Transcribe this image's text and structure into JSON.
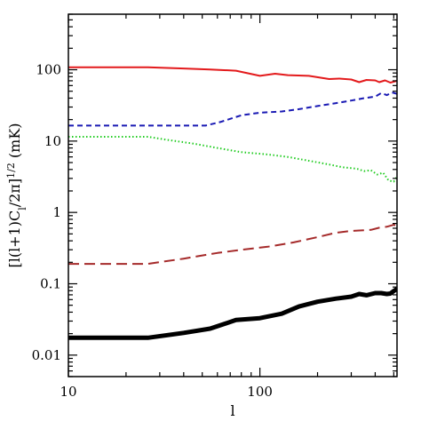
{
  "chart_data": {
    "type": "line",
    "title": "",
    "xlabel": "l",
    "ylabel": "[l(l+1)C_l/2π]^{1/2} (mK)",
    "x_scale": "log",
    "y_scale": "log",
    "xlim": [
      10,
      520
    ],
    "ylim": [
      0.005,
      600
    ],
    "grid": false,
    "legend": "none",
    "x_ticks": [
      {
        "value": 10,
        "label": "10"
      },
      {
        "value": 100,
        "label": "100"
      }
    ],
    "y_ticks": [
      {
        "value": 0.01,
        "label": "0.01"
      },
      {
        "value": 0.1,
        "label": "0.1"
      },
      {
        "value": 1,
        "label": "1"
      },
      {
        "value": 10,
        "label": "10"
      },
      {
        "value": 100,
        "label": "100"
      }
    ],
    "series": [
      {
        "color": "#e31a1c",
        "style": "solid",
        "width": 2,
        "points": [
          [
            10,
            108
          ],
          [
            20,
            108
          ],
          [
            26,
            108
          ],
          [
            40,
            104
          ],
          [
            55,
            101
          ],
          [
            75,
            97
          ],
          [
            100,
            82
          ],
          [
            120,
            88
          ],
          [
            140,
            84
          ],
          [
            180,
            82
          ],
          [
            230,
            74
          ],
          [
            260,
            75
          ],
          [
            300,
            73
          ],
          [
            330,
            67
          ],
          [
            360,
            72
          ],
          [
            400,
            71
          ],
          [
            420,
            67
          ],
          [
            450,
            71
          ],
          [
            480,
            66
          ],
          [
            500,
            68
          ],
          [
            520,
            70
          ]
        ]
      },
      {
        "color": "#1a1ab4",
        "style": "dashed",
        "width": 2,
        "points": [
          [
            10,
            16.5
          ],
          [
            25,
            16.5
          ],
          [
            52,
            16.5
          ],
          [
            62,
            18.5
          ],
          [
            80,
            23
          ],
          [
            100,
            25
          ],
          [
            130,
            26
          ],
          [
            160,
            28
          ],
          [
            200,
            31
          ],
          [
            250,
            34
          ],
          [
            300,
            37
          ],
          [
            350,
            40
          ],
          [
            400,
            42
          ],
          [
            430,
            47
          ],
          [
            460,
            44
          ],
          [
            490,
            48
          ],
          [
            520,
            46
          ]
        ]
      },
      {
        "color": "#22cc22",
        "style": "dotted",
        "width": 2,
        "points": [
          [
            10,
            11.5
          ],
          [
            26,
            11.5
          ],
          [
            32,
            10.5
          ],
          [
            45,
            9.2
          ],
          [
            60,
            8
          ],
          [
            80,
            7
          ],
          [
            110,
            6.5
          ],
          [
            140,
            6
          ],
          [
            180,
            5.3
          ],
          [
            230,
            4.7
          ],
          [
            270,
            4.3
          ],
          [
            320,
            4.1
          ],
          [
            350,
            3.8
          ],
          [
            380,
            3.9
          ],
          [
            410,
            3.4
          ],
          [
            440,
            3.6
          ],
          [
            470,
            2.8
          ],
          [
            500,
            2.7
          ],
          [
            520,
            3.2
          ]
        ]
      },
      {
        "color": "#a52a2a",
        "style": "longdash",
        "width": 2,
        "points": [
          [
            10,
            0.19
          ],
          [
            26,
            0.19
          ],
          [
            40,
            0.225
          ],
          [
            60,
            0.27
          ],
          [
            80,
            0.3
          ],
          [
            110,
            0.33
          ],
          [
            150,
            0.38
          ],
          [
            200,
            0.45
          ],
          [
            250,
            0.52
          ],
          [
            300,
            0.55
          ],
          [
            340,
            0.56
          ],
          [
            380,
            0.57
          ],
          [
            420,
            0.61
          ],
          [
            460,
            0.63
          ],
          [
            500,
            0.67
          ],
          [
            520,
            0.65
          ]
        ]
      },
      {
        "color": "#000000",
        "style": "solid",
        "width": 5,
        "points": [
          [
            10,
            0.0175
          ],
          [
            26,
            0.0175
          ],
          [
            40,
            0.0205
          ],
          [
            55,
            0.0235
          ],
          [
            75,
            0.031
          ],
          [
            100,
            0.033
          ],
          [
            130,
            0.038
          ],
          [
            160,
            0.048
          ],
          [
            200,
            0.056
          ],
          [
            250,
            0.062
          ],
          [
            300,
            0.066
          ],
          [
            330,
            0.072
          ],
          [
            360,
            0.069
          ],
          [
            400,
            0.074
          ],
          [
            430,
            0.074
          ],
          [
            460,
            0.072
          ],
          [
            480,
            0.073
          ],
          [
            500,
            0.079
          ],
          [
            520,
            0.085
          ]
        ]
      }
    ]
  }
}
